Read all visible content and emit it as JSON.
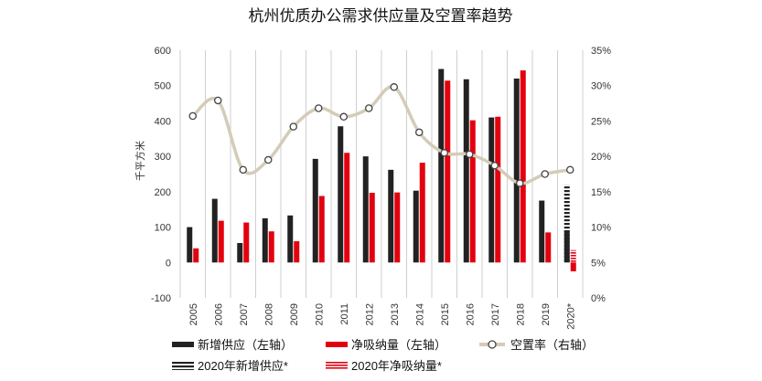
{
  "chart_data": {
    "type": "bar",
    "title": "杭州优质办公需求供应量及空置率趋势",
    "ylabel": "千平方米",
    "categories": [
      "2005",
      "2006",
      "2007",
      "2008",
      "2009",
      "2010",
      "2011",
      "2012",
      "2013",
      "2014",
      "2015",
      "2016",
      "2017",
      "2018",
      "2019",
      "2020*"
    ],
    "ylim": [
      -100,
      600
    ],
    "yticks": [
      -100,
      0,
      100,
      200,
      300,
      400,
      500,
      600
    ],
    "y2lim": [
      0,
      35
    ],
    "y2ticks": [
      "0%",
      "5%",
      "10%",
      "15%",
      "20%",
      "25%",
      "30%",
      "35%"
    ],
    "grid": "vertical",
    "legend_position": "bottom",
    "series": [
      {
        "name": "新增供应（左轴）",
        "kind": "bar",
        "axis": "left",
        "color": "#222222",
        "values": [
          100,
          180,
          55,
          125,
          133,
          293,
          385,
          300,
          262,
          203,
          547,
          518,
          410,
          520,
          175,
          90
        ]
      },
      {
        "name": "净吸纳量（左轴）",
        "kind": "bar",
        "axis": "left",
        "color": "#e3000f",
        "values": [
          40,
          118,
          113,
          88,
          60,
          188,
          310,
          197,
          198,
          282,
          514,
          402,
          412,
          543,
          85,
          -25
        ]
      },
      {
        "name": "空置率（右轴）",
        "kind": "line",
        "axis": "right",
        "color": "#d4ccb8",
        "values": [
          25.7,
          27.9,
          18.1,
          19.5,
          24.2,
          26.8,
          25.6,
          26.8,
          29.8,
          23.4,
          20.5,
          20.3,
          18.7,
          16.2,
          17.5,
          18.1
        ]
      },
      {
        "name": "2020年新增供应*",
        "kind": "bar-hatched",
        "axis": "left",
        "color": "#222222",
        "values": [
          null,
          null,
          null,
          null,
          null,
          null,
          null,
          null,
          null,
          null,
          null,
          null,
          null,
          null,
          null,
          220
        ]
      },
      {
        "name": "2020年净吸纳量*",
        "kind": "bar-hatched",
        "axis": "left",
        "color": "#e3000f",
        "values": [
          null,
          null,
          null,
          null,
          null,
          null,
          null,
          null,
          null,
          null,
          null,
          null,
          null,
          null,
          null,
          35
        ]
      }
    ]
  }
}
